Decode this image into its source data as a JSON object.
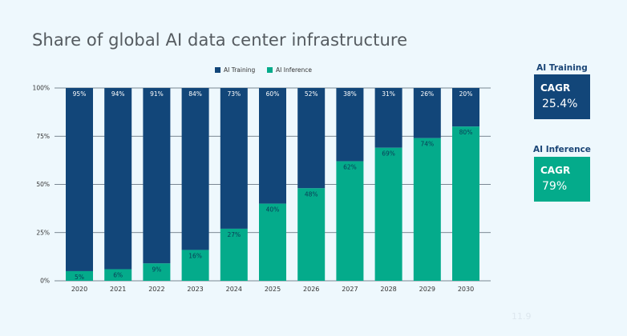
{
  "title": "Share of global AI data center infrastructure",
  "page_number": "11.9",
  "colors": {
    "training": "#124679",
    "inference": "#04ab8b",
    "grid": "#556270",
    "background": "#eef8fd"
  },
  "sidebar": {
    "training": {
      "heading": "AI Training",
      "metric": "CAGR",
      "value": "25.4%"
    },
    "inference": {
      "heading": "AI Inference",
      "metric": "CAGR",
      "value": "79%"
    }
  },
  "chart_data": {
    "type": "bar",
    "stacked": true,
    "percent": true,
    "title": "Share of global AI data center infrastructure",
    "categories": [
      "2020",
      "2021",
      "2022",
      "2023",
      "2024",
      "2025",
      "2026",
      "2027",
      "2028",
      "2029",
      "2030"
    ],
    "series": [
      {
        "name": "AI Training",
        "values": [
          95,
          94,
          91,
          84,
          73,
          60,
          52,
          38,
          31,
          26,
          20
        ]
      },
      {
        "name": "AI Inference",
        "values": [
          5,
          6,
          9,
          16,
          27,
          40,
          48,
          62,
          69,
          74,
          80
        ]
      }
    ],
    "data_labels": {
      "AI Training": [
        "95%",
        "94%",
        "91%",
        "84%",
        "73%",
        "60%",
        "52%",
        "38%",
        "31%",
        "26%",
        "20%"
      ],
      "AI Inference": [
        "5%",
        "6%",
        "9%",
        "16%",
        "27%",
        "40%",
        "48%",
        "62%",
        "69%",
        "74%",
        "80%"
      ]
    },
    "yticks": [
      "0%",
      "25%",
      "50%",
      "75%",
      "100%"
    ],
    "ytick_values": [
      0,
      25,
      50,
      75,
      100
    ],
    "ylim": [
      0,
      100
    ],
    "legend_position": "top-center",
    "grid": true
  }
}
